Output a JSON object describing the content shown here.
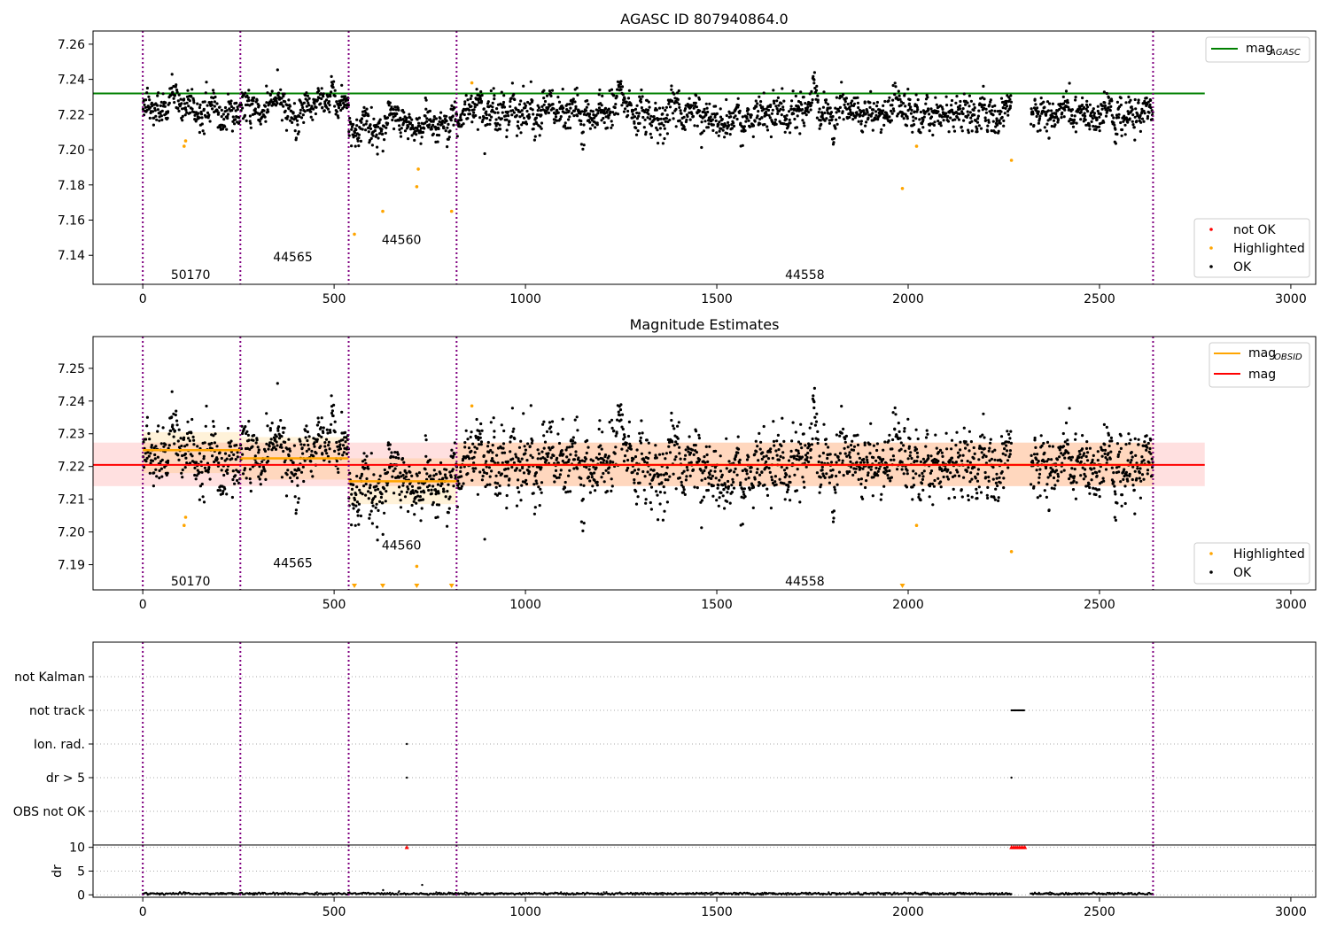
{
  "chart_data": [
    {
      "type": "scatter",
      "title": "AGASC ID 807940864.0",
      "xlim": [
        -130,
        3065
      ],
      "ylim": [
        7.1235,
        7.2675
      ],
      "x_ticks": [
        0,
        500,
        1000,
        1500,
        2000,
        2500,
        3000
      ],
      "y_ticks": [
        7.14,
        7.16,
        7.18,
        7.2,
        7.22,
        7.24,
        7.26
      ],
      "obsid_boundaries": [
        0,
        255,
        538,
        820,
        2640
      ],
      "obsid_labels": [
        {
          "text": "50170",
          "x": 125,
          "y": 7.129
        },
        {
          "text": "44565",
          "x": 392,
          "y": 7.139
        },
        {
          "text": "44560",
          "x": 676,
          "y": 7.149
        },
        {
          "text": "44558",
          "x": 1730,
          "y": 7.129
        }
      ],
      "lines": [
        {
          "name": "mag_AGASC",
          "y": 7.232,
          "x": [
            -130,
            2775
          ],
          "color": "#008000"
        }
      ],
      "ok_points": {
        "name": "OK",
        "color": "#000000",
        "segments": [
          {
            "x": [
              0,
              255
            ],
            "mean": 7.225,
            "sd": 0.006,
            "n": 240
          },
          {
            "x": [
              255,
              538
            ],
            "mean": 7.224,
            "sd": 0.0055,
            "n": 270
          },
          {
            "x": [
              538,
              820
            ],
            "mean": 7.214,
            "sd": 0.0055,
            "n": 280
          },
          {
            "x": [
              820,
              2270
            ],
            "mean": 7.221,
            "sd": 0.0065,
            "n": 1400
          },
          {
            "x": [
              2320,
              2640
            ],
            "mean": 7.221,
            "sd": 0.0058,
            "n": 320
          }
        ]
      },
      "highlighted_points": {
        "name": "Highlighted",
        "color": "#ffa500",
        "points": [
          [
            108,
            7.202
          ],
          [
            112,
            7.205
          ],
          [
            553,
            7.152
          ],
          [
            627,
            7.165
          ],
          [
            716,
            7.179
          ],
          [
            720,
            7.189
          ],
          [
            807,
            7.165
          ],
          [
            860,
            7.238
          ],
          [
            1985,
            7.178
          ],
          [
            2022,
            7.202
          ],
          [
            2270,
            7.194
          ]
        ]
      },
      "not_ok_points": {
        "name": "not OK",
        "color": "#ff0000",
        "points": []
      },
      "legend_upper": {
        "placement": "top-right",
        "entries": [
          {
            "label": "mag",
            "sub": "AGASC",
            "kind": "line",
            "color": "#008000"
          }
        ]
      },
      "legend_lower": {
        "placement": "bottom-right",
        "entries": [
          {
            "label": "not OK",
            "kind": "dot",
            "color": "#ff0000"
          },
          {
            "label": "Highlighted",
            "kind": "dot",
            "color": "#ffa500"
          },
          {
            "label": "OK",
            "kind": "dot",
            "color": "#000000"
          }
        ]
      }
    },
    {
      "type": "scatter",
      "title": "Magnitude Estimates",
      "xlim": [
        -130,
        3065
      ],
      "ylim": [
        7.1823,
        7.2597
      ],
      "x_ticks": [
        0,
        500,
        1000,
        1500,
        2000,
        2500,
        3000
      ],
      "y_ticks": [
        7.19,
        7.2,
        7.21,
        7.22,
        7.23,
        7.24,
        7.25
      ],
      "obsid_boundaries": [
        0,
        255,
        538,
        820,
        2640
      ],
      "obsid_labels": [
        {
          "text": "50170",
          "x": 125,
          "y": 7.185
        },
        {
          "text": "44565",
          "x": 392,
          "y": 7.1905
        },
        {
          "text": "44560",
          "x": 676,
          "y": 7.196
        },
        {
          "text": "44558",
          "x": 1730,
          "y": 7.185
        }
      ],
      "mag_band": {
        "mean": 7.2205,
        "low": 7.214,
        "high": 7.2273,
        "x": [
          -130,
          2775
        ],
        "color": "#ff0000"
      },
      "obsid_means": [
        {
          "x": [
            0,
            255
          ],
          "mean": 7.225,
          "low": 7.218,
          "high": 7.2305
        },
        {
          "x": [
            255,
            538
          ],
          "mean": 7.2225,
          "low": 7.216,
          "high": 7.229
        },
        {
          "x": [
            538,
            820
          ],
          "mean": 7.2155,
          "low": 7.2085,
          "high": 7.2225
        },
        {
          "x": [
            820,
            2640
          ],
          "mean": 7.2205,
          "low": 7.214,
          "high": 7.2273
        }
      ],
      "ok_points": {
        "name": "OK",
        "color": "#000000"
      },
      "highlighted_points": {
        "name": "Highlighted",
        "color": "#ffa500",
        "points": [
          [
            108,
            7.202
          ],
          [
            112,
            7.2045
          ],
          [
            716,
            7.1895
          ],
          [
            860,
            7.2385
          ],
          [
            2022,
            7.202
          ],
          [
            2270,
            7.194
          ]
        ],
        "clipped_below": [
          553,
          627,
          716,
          807,
          1985
        ]
      },
      "legend_upper": {
        "placement": "top-right",
        "entries": [
          {
            "label": "mag",
            "sub": "OBSID",
            "kind": "line",
            "color": "#ffa500"
          },
          {
            "label": "mag",
            "sub": "",
            "kind": "line",
            "color": "#ff0000"
          }
        ]
      },
      "legend_lower": {
        "placement": "bottom-right",
        "entries": [
          {
            "label": "Highlighted",
            "kind": "dot",
            "color": "#ffa500"
          },
          {
            "label": "OK",
            "kind": "dot",
            "color": "#000000"
          }
        ]
      }
    },
    {
      "type": "scatter",
      "title": "",
      "xlim": [
        -130,
        3065
      ],
      "obsid_boundaries": [
        0,
        255,
        538,
        820,
        2640
      ],
      "flag_categories": [
        "not Kalman",
        "not track",
        "Ion. rad.",
        "dr > 5",
        "OBS not OK"
      ],
      "flag_points": [
        {
          "flag": "not track",
          "x": [
            2270,
            2305
          ]
        },
        {
          "flag": "Ion. rad.",
          "x": [
            690
          ]
        },
        {
          "flag": "dr > 5",
          "x": [
            690,
            2270
          ]
        }
      ]
    },
    {
      "type": "scatter",
      "title": "",
      "ylabel": "dr",
      "xlim": [
        -130,
        3065
      ],
      "ylim": [
        -0.5,
        10.5
      ],
      "x_ticks": [
        0,
        500,
        1000,
        1500,
        2000,
        2500,
        3000
      ],
      "y_ticks": [
        0,
        5,
        10
      ],
      "obsid_boundaries": [
        0,
        255,
        538,
        820,
        2640
      ],
      "dr_typical": 0.25,
      "dr_points": [
        [
          730,
          2.1
        ],
        [
          628,
          1.0
        ]
      ],
      "dr_clipped": {
        "color": "#ff0000",
        "y": 10,
        "x": [
          690,
          2270,
          2275,
          2280,
          2285,
          2290,
          2295,
          2300,
          2305
        ]
      }
    }
  ]
}
